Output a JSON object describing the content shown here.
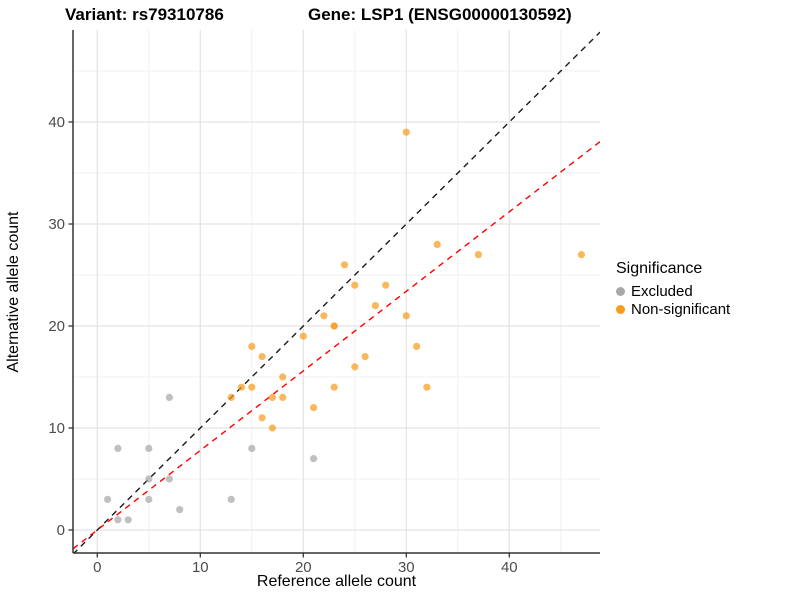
{
  "titles": {
    "left": "Variant: rs79310786",
    "right": "Gene: LSP1 (ENSG00000130592)"
  },
  "axes": {
    "x_label": "Reference allele count",
    "y_label": "Alternative allele count"
  },
  "legend": {
    "title": "Significance",
    "items": [
      {
        "label": "Excluded",
        "color": "#A8A8A8"
      },
      {
        "label": "Non-significant",
        "color": "#F89C1E"
      }
    ]
  },
  "colors": {
    "gray_points": "#A8A8A8",
    "orange_points": "#F89C1E",
    "identity_line": "#1A1A1A",
    "ratio_line": "#FF0000",
    "grid_major": "#E3E3E3",
    "grid_minor": "#F1F1F1",
    "axis_line": "#333333",
    "tick_text": "#4D4D4D"
  },
  "chart_data": {
    "type": "scatter",
    "title": "Variant: rs79310786 / Gene: LSP1 (ENSG00000130592)",
    "xlabel": "Reference allele count",
    "ylabel": "Alternative allele count",
    "xlim": [
      -2.4,
      48.8
    ],
    "ylim": [
      -2.4,
      49.0
    ],
    "x_ticks": [
      0,
      10,
      20,
      30,
      40
    ],
    "y_ticks": [
      0,
      10,
      20,
      30,
      40
    ],
    "x_minor": [
      5,
      15,
      25,
      35,
      45
    ],
    "y_minor": [
      5,
      15,
      25,
      35,
      45
    ],
    "grid": "on",
    "legend_position": "right",
    "series": [
      {
        "name": "Excluded",
        "color": "#A8A8A8",
        "points": [
          [
            1,
            3
          ],
          [
            2,
            1
          ],
          [
            2,
            8
          ],
          [
            3,
            1
          ],
          [
            5,
            3
          ],
          [
            5,
            5
          ],
          [
            5,
            8
          ],
          [
            7,
            5
          ],
          [
            7,
            13
          ],
          [
            8,
            2
          ],
          [
            13,
            3
          ],
          [
            15,
            8
          ],
          [
            21,
            7
          ]
        ]
      },
      {
        "name": "Non-significant",
        "color": "#F89C1E",
        "points": [
          [
            13,
            13
          ],
          [
            14,
            14
          ],
          [
            15,
            14
          ],
          [
            15,
            18
          ],
          [
            16,
            11
          ],
          [
            16,
            17
          ],
          [
            17,
            10
          ],
          [
            17,
            13
          ],
          [
            18,
            13
          ],
          [
            18,
            15
          ],
          [
            20,
            19
          ],
          [
            21,
            12
          ],
          [
            22,
            21
          ],
          [
            23,
            14
          ],
          [
            23,
            20
          ],
          [
            23,
            20
          ],
          [
            24,
            26
          ],
          [
            25,
            16
          ],
          [
            25,
            24
          ],
          [
            26,
            17
          ],
          [
            27,
            22
          ],
          [
            28,
            24
          ],
          [
            30,
            21
          ],
          [
            30,
            39
          ],
          [
            31,
            18
          ],
          [
            32,
            14
          ],
          [
            33,
            28
          ],
          [
            37,
            27
          ],
          [
            47,
            27
          ]
        ]
      }
    ],
    "lines": [
      {
        "name": "identity",
        "slope": 1,
        "intercept": 0,
        "color": "#1A1A1A",
        "dash": "6,5"
      },
      {
        "name": "expected-ratio",
        "slope": 0.78,
        "intercept": 0,
        "color": "#FF0000",
        "dash": "6,5"
      }
    ]
  }
}
